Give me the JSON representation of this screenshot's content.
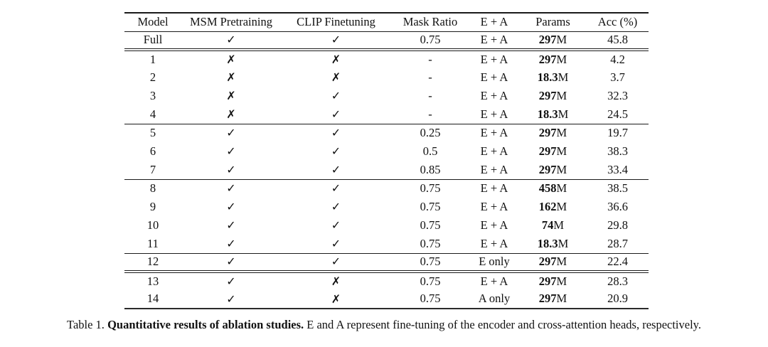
{
  "table": {
    "columns": [
      "Model",
      "MSM Pretraining",
      "CLIP Finetuning",
      "Mask Ratio",
      "E + A",
      "Params",
      "Acc (%)"
    ],
    "symbols": {
      "check": "✓",
      "cross": "✗",
      "none": "-"
    },
    "rows": [
      {
        "model": "Full",
        "msm": "✓",
        "clip": "✓",
        "mask": "0.75",
        "ea": "E + A",
        "params": "297M",
        "acc": "45.8",
        "bold_mask": true,
        "bold_acc": true,
        "sep": "double"
      },
      {
        "model": "1",
        "msm": "✗",
        "clip": "✗",
        "mask": "-",
        "ea": "E + A",
        "params": "297M",
        "acc": "4.2"
      },
      {
        "model": "2",
        "msm": "✗",
        "clip": "✗",
        "mask": "-",
        "ea": "E + A",
        "params": "18.3M",
        "acc": "3.7"
      },
      {
        "model": "3",
        "msm": "✗",
        "clip": "✓",
        "mask": "-",
        "ea": "E + A",
        "params": "297M",
        "acc": "32.3"
      },
      {
        "model": "4",
        "msm": "✗",
        "clip": "✓",
        "mask": "-",
        "ea": "E + A",
        "params": "18.3M",
        "acc": "24.5",
        "sep": "single"
      },
      {
        "model": "5",
        "msm": "✓",
        "clip": "✓",
        "mask": "0.25",
        "ea": "E + A",
        "params": "297M",
        "acc": "19.7"
      },
      {
        "model": "6",
        "msm": "✓",
        "clip": "✓",
        "mask": "0.5",
        "ea": "E + A",
        "params": "297M",
        "acc": "38.3"
      },
      {
        "model": "7",
        "msm": "✓",
        "clip": "✓",
        "mask": "0.85",
        "ea": "E + A",
        "params": "297M",
        "acc": "33.4",
        "sep": "single"
      },
      {
        "model": "8",
        "msm": "✓",
        "clip": "✓",
        "mask": "0.75",
        "ea": "E + A",
        "params": "458M",
        "acc": "38.5"
      },
      {
        "model": "9",
        "msm": "✓",
        "clip": "✓",
        "mask": "0.75",
        "ea": "E + A",
        "params": "162M",
        "acc": "36.6"
      },
      {
        "model": "10",
        "msm": "✓",
        "clip": "✓",
        "mask": "0.75",
        "ea": "E + A",
        "params": "74M",
        "acc": "29.8"
      },
      {
        "model": "11",
        "msm": "✓",
        "clip": "✓",
        "mask": "0.75",
        "ea": "E + A",
        "params": "18.3M",
        "acc": "28.7",
        "sep": "single"
      },
      {
        "model": "12",
        "msm": "✓",
        "clip": "✓",
        "mask": "0.75",
        "ea": "E only",
        "params": "297M",
        "acc": "22.4",
        "sep": "double"
      },
      {
        "model": "13",
        "msm": "✓",
        "clip": "✗",
        "mask": "0.75",
        "ea": "E + A",
        "params": "297M",
        "acc": "28.3"
      },
      {
        "model": "14",
        "msm": "✓",
        "clip": "✗",
        "mask": "0.75",
        "ea": "A only",
        "params": "297M",
        "acc": "20.9"
      }
    ]
  },
  "caption": {
    "prefix": "Table 1.",
    "bold": "Quantitative results of ablation studies.",
    "rest": "E and A represent fine-tuning of the encoder and cross-attention heads, respectively."
  },
  "colors": {
    "text": "#111111",
    "rule": "#1a1a1a",
    "background": "#ffffff"
  }
}
